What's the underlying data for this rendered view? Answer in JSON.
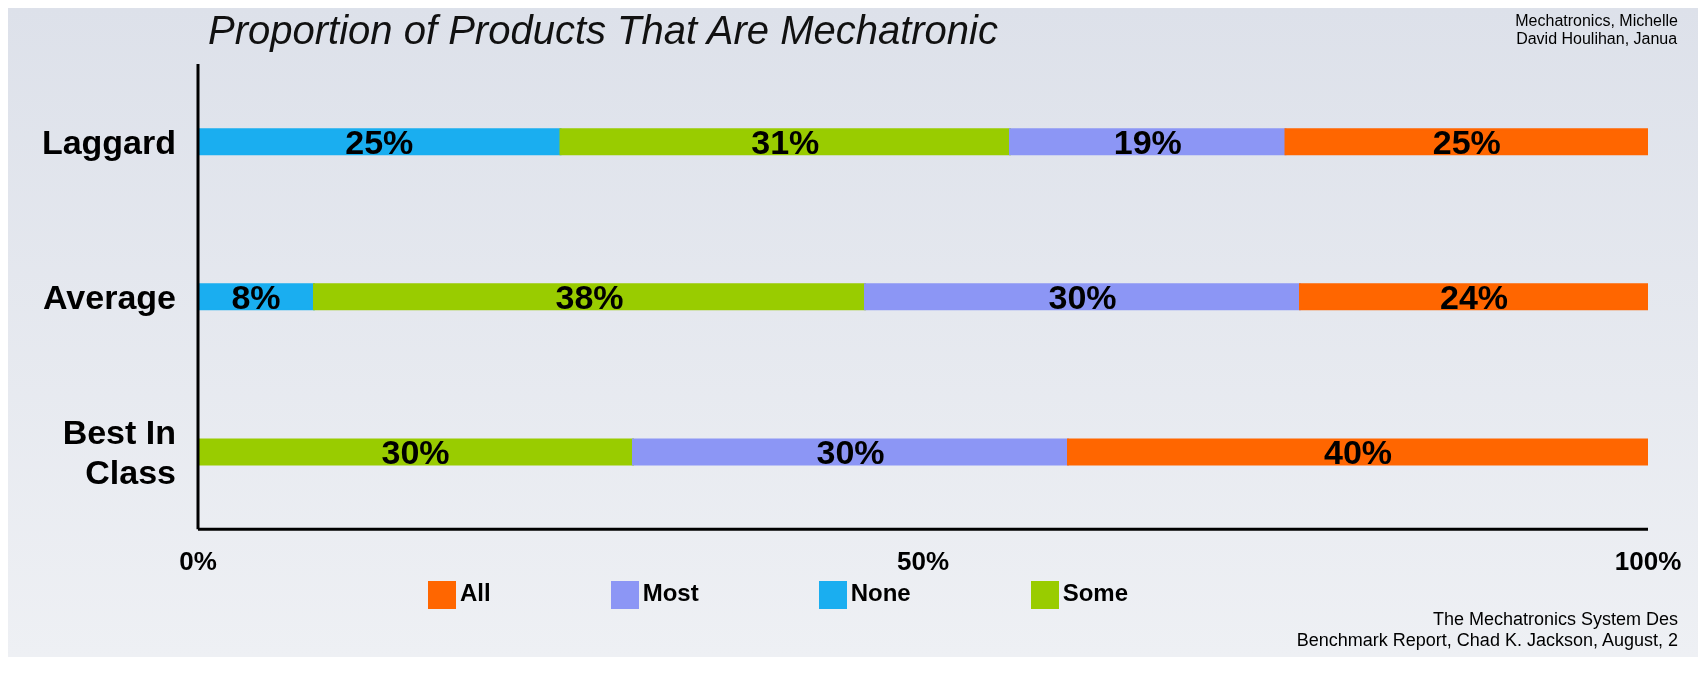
{
  "chart_data": {
    "type": "bar",
    "orientation": "horizontal",
    "stacked": true,
    "title": "Proportion of Products That Are Mechatronic",
    "categories": [
      "Laggard",
      "Average",
      "Best In Class"
    ],
    "series": [
      {
        "name": "None",
        "color": "#1aaef0",
        "values": [
          25,
          8,
          null
        ],
        "value_labels": [
          "25%",
          "8%",
          null
        ]
      },
      {
        "name": "Some",
        "color": "#99cc00",
        "values": [
          31,
          38,
          30
        ],
        "value_labels": [
          "31%",
          "38%",
          "30%"
        ]
      },
      {
        "name": "Most",
        "color": "#8c96f5",
        "values": [
          19,
          30,
          30
        ],
        "value_labels": [
          "19%",
          "30%",
          "30%"
        ]
      },
      {
        "name": "All",
        "color": "#ff6600",
        "values": [
          25,
          24,
          40
        ],
        "value_labels": [
          "25%",
          "24%",
          "40%"
        ]
      }
    ],
    "xlim": [
      0,
      100
    ],
    "xticks": [
      {
        "value": 0,
        "label": "0%"
      },
      {
        "value": 50,
        "label": "50%"
      },
      {
        "value": 100,
        "label": "100%"
      }
    ],
    "grid": false,
    "legend": "bottom",
    "annotations": [
      "Mechatronics, Michelle",
      "David Houlihan, Janua",
      "The Mechatronics System Des",
      "Benchmark Report, Chad K. Jackson, August, 2"
    ]
  }
}
